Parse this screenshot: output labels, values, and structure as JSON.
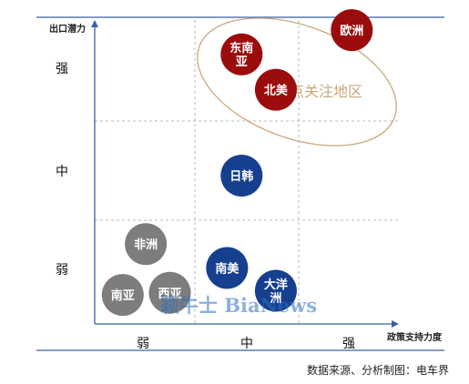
{
  "chart_data": {
    "type": "scatter",
    "title": "",
    "xlabel": "政策支持力度",
    "ylabel": "出口潜力",
    "x_levels": [
      "弱",
      "中",
      "强"
    ],
    "y_levels": [
      "弱",
      "中",
      "强"
    ],
    "grid": true,
    "points": [
      {
        "label": "北美",
        "x": "中",
        "y": "强",
        "color": "#9b0d0d"
      },
      {
        "label": "东南亚",
        "x": "中",
        "y": "强",
        "color": "#9b0d0d"
      },
      {
        "label": "欧洲",
        "x": "强",
        "y": "强",
        "color": "#9b0d0d"
      },
      {
        "label": "日韩",
        "x": "中",
        "y": "中",
        "color": "#173f8f"
      },
      {
        "label": "大洋洲",
        "x": "中",
        "y": "弱",
        "color": "#173f8f"
      },
      {
        "label": "南美",
        "x": "中",
        "y": "弱",
        "color": "#173f8f"
      },
      {
        "label": "南亚",
        "x": "弱",
        "y": "弱",
        "color": "#7d7d7d"
      },
      {
        "label": "西亚",
        "x": "弱",
        "y": "弱",
        "color": "#7d7d7d"
      },
      {
        "label": "非洲",
        "x": "弱",
        "y": "弱",
        "color": "#7d7d7d"
      }
    ],
    "annotation": {
      "label": "重点关注地区",
      "color": "#c9a77a"
    }
  },
  "watermark": "颖牛士 BiaNews",
  "source": "数据来源、分析制图：电车界",
  "colors": {
    "axis": "#3a5fa8",
    "grid": "#b9b9b9"
  }
}
